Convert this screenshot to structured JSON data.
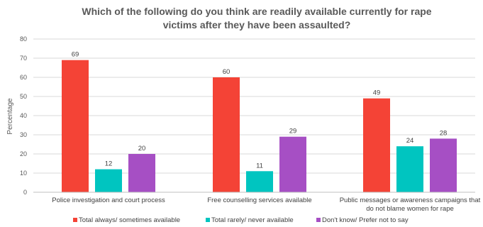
{
  "chart_data": {
    "type": "bar",
    "title_lines": [
      "Which of the following do you think are readily available currently for rape",
      "victims after they have been assaulted?"
    ],
    "ylabel": "Percentage",
    "ylim": [
      0,
      80
    ],
    "yticks": [
      0,
      10,
      20,
      30,
      40,
      50,
      60,
      70,
      80
    ],
    "categories": [
      [
        "Police investigation and court process"
      ],
      [
        "Free counselling services available"
      ],
      [
        "Public messages or awareness campaigns that",
        "do not blame women for rape"
      ]
    ],
    "series": [
      {
        "name": "Total always/ sometimes available",
        "color": "#f44336",
        "values": [
          69,
          60,
          49
        ]
      },
      {
        "name": "Total rarely/ never available",
        "color": "#00c5c0",
        "values": [
          12,
          11,
          24
        ]
      },
      {
        "name": "Don't know/ Prefer not to say",
        "color": "#a64fc4",
        "values": [
          20,
          29,
          28
        ]
      }
    ],
    "legend_position": "bottom",
    "grid": true
  }
}
